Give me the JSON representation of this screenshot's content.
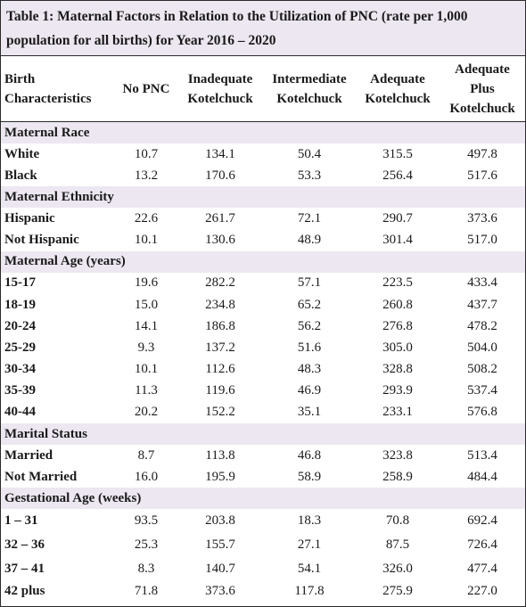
{
  "caption": {
    "line1": "Table 1: Maternal Factors in Relation to the Utilization of PNC (rate per 1,000",
    "line2": "population for all births) for Year 2016 – 2020"
  },
  "columns": {
    "c0": [
      "Birth",
      "Characteristics"
    ],
    "c1": [
      "No PNC"
    ],
    "c2": [
      "Inadequate",
      "Kotelchuck"
    ],
    "c3": [
      "Intermediate",
      "Kotelchuck"
    ],
    "c4": [
      "Adequate",
      "Kotelchuck"
    ],
    "c5": [
      "Adequate",
      "Plus",
      "Kotelchuck"
    ]
  },
  "groups": [
    {
      "title": "Maternal Race",
      "rows": [
        {
          "label": "White",
          "v": [
            "10.7",
            "134.1",
            "50.4",
            "315.5",
            "497.8"
          ]
        },
        {
          "label": "Black",
          "v": [
            "13.2",
            "170.6",
            "53.3",
            "256.4",
            "517.6"
          ]
        }
      ]
    },
    {
      "title": "Maternal Ethnicity",
      "rows": [
        {
          "label": "Hispanic",
          "v": [
            "22.6",
            "261.7",
            "72.1",
            "290.7",
            "373.6"
          ]
        },
        {
          "label": "Not Hispanic",
          "v": [
            "10.1",
            "130.6",
            "48.9",
            "301.4",
            "517.0"
          ]
        }
      ]
    },
    {
      "title": "Maternal Age (years)",
      "rows": [
        {
          "label": "15-17",
          "v": [
            "19.6",
            "282.2",
            "57.1",
            "223.5",
            "433.4"
          ]
        },
        {
          "label": "18-19",
          "v": [
            "15.0",
            "234.8",
            "65.2",
            "260.8",
            "437.7"
          ]
        },
        {
          "label": "20-24",
          "v": [
            "14.1",
            "186.8",
            "56.2",
            "276.8",
            "478.2"
          ]
        },
        {
          "label": "25-29",
          "v": [
            "9.3",
            "137.2",
            "51.6",
            "305.0",
            "504.0"
          ]
        },
        {
          "label": "30-34",
          "v": [
            "10.1",
            "112.6",
            "48.3",
            "328.8",
            "508.2"
          ]
        },
        {
          "label": "35-39",
          "v": [
            "11.3",
            "119.6",
            "46.9",
            "293.9",
            "537.4"
          ]
        },
        {
          "label": "40-44",
          "v": [
            "20.2",
            "152.2",
            "35.1",
            "233.1",
            "576.8"
          ]
        }
      ]
    },
    {
      "title": "Marital Status",
      "rows": [
        {
          "label": "Married",
          "v": [
            "8.7",
            "113.8",
            "46.8",
            "323.8",
            "513.4"
          ]
        },
        {
          "label": "Not Married",
          "v": [
            "16.0",
            "195.9",
            "58.9",
            "258.9",
            "484.4"
          ]
        }
      ]
    },
    {
      "title": "Gestational Age (weeks)",
      "rows": [
        {
          "label": "1 – 31",
          "v": [
            "93.5",
            "203.8",
            "18.3",
            "70.8",
            "692.4"
          ]
        },
        {
          "label": "32 – 36",
          "v": [
            "25.3",
            "155.7",
            "27.1",
            "87.5",
            "726.4"
          ]
        },
        {
          "label": "37 – 41",
          "v": [
            "8.3",
            "140.7",
            "54.1",
            "326.0",
            "477.4"
          ]
        },
        {
          "label": "42 plus",
          "v": [
            "71.8",
            "373.6",
            "117.8",
            "275.9",
            "227.0"
          ]
        }
      ]
    }
  ]
}
